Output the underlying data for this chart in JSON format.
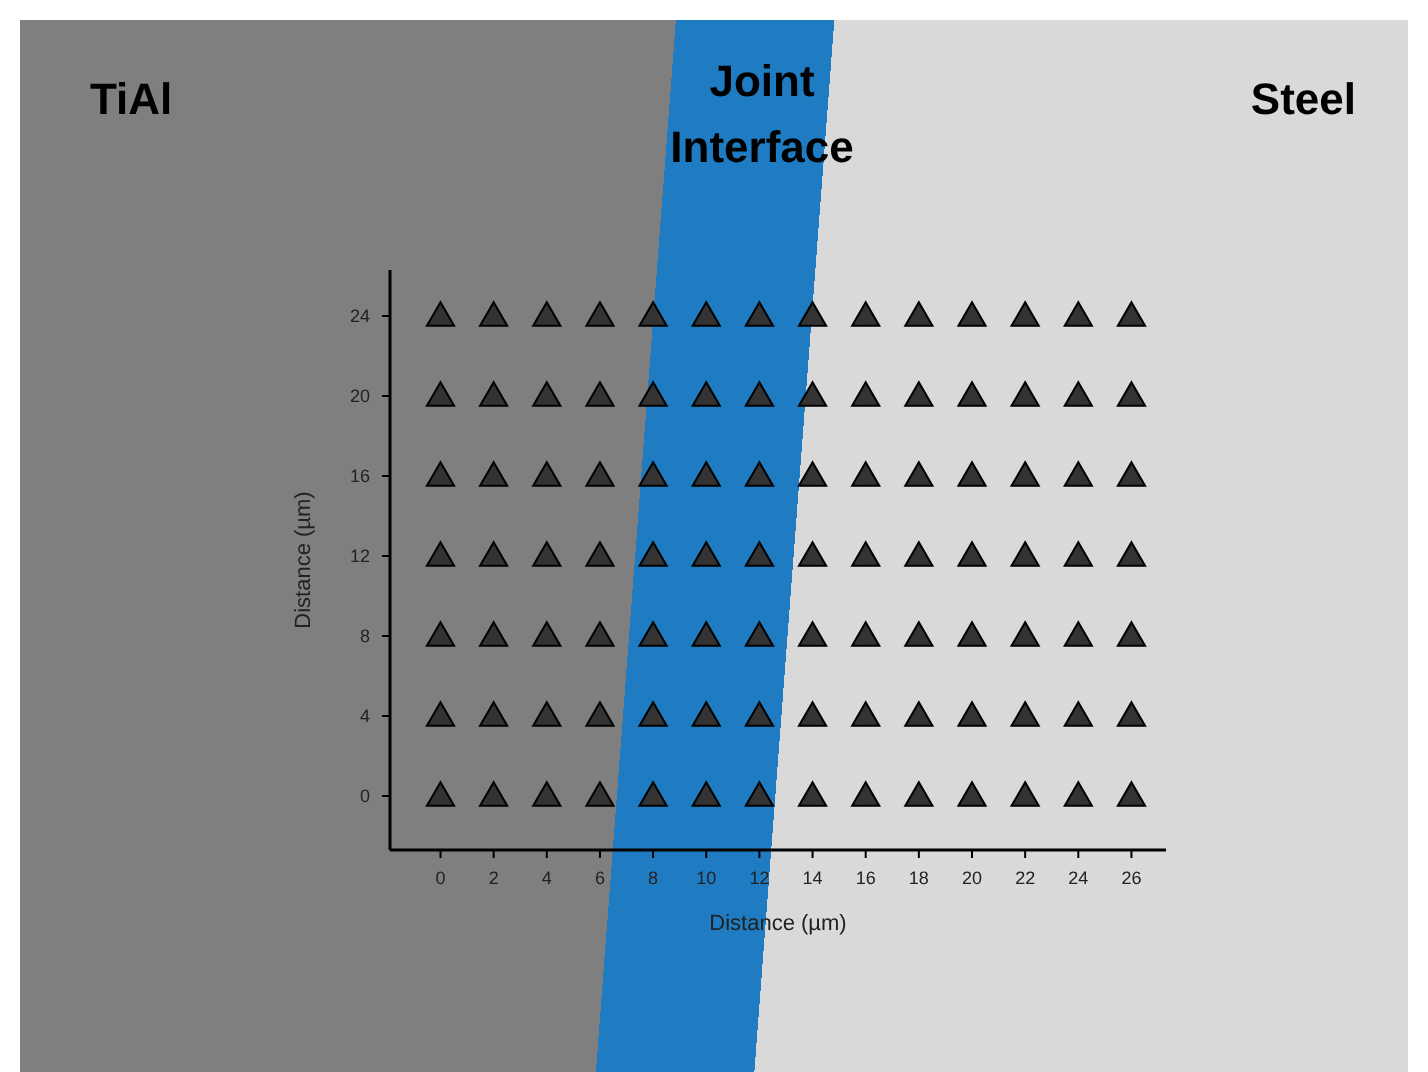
{
  "chart_data": {
    "type": "scatter",
    "xlabel": "Distance (µm)",
    "ylabel": "Distance (µm)",
    "annotations": [
      "TiAl",
      "Joint Interface",
      "Steel"
    ],
    "xlim": [
      -1.9,
      27.3
    ],
    "ylim": [
      -2.7,
      26.3
    ],
    "xticks": [
      0,
      2,
      4,
      6,
      8,
      10,
      12,
      14,
      16,
      18,
      20,
      22,
      24,
      26
    ],
    "yticks": [
      0,
      4,
      8,
      12,
      16,
      20,
      24
    ],
    "marker": "triangle",
    "series": [
      {
        "color": "#333333",
        "x": [
          0,
          2,
          4,
          6,
          8,
          10,
          12,
          14,
          16,
          18,
          20,
          22,
          24,
          26,
          0,
          2,
          4,
          6,
          8,
          10,
          12,
          14,
          16,
          18,
          20,
          22,
          24,
          26,
          0,
          2,
          4,
          6,
          8,
          10,
          12,
          14,
          16,
          18,
          20,
          22,
          24,
          26,
          0,
          2,
          4,
          6,
          8,
          10,
          12,
          14,
          16,
          18,
          20,
          22,
          24,
          26,
          0,
          2,
          4,
          6,
          8,
          10,
          12,
          14,
          16,
          18,
          20,
          22,
          24,
          26,
          0,
          2,
          4,
          6,
          8,
          10,
          12,
          14,
          16,
          18,
          20,
          22,
          24,
          26,
          0,
          2,
          4,
          6,
          8,
          10,
          12,
          14,
          16,
          18,
          20,
          22,
          24,
          26
        ],
        "values": [
          0,
          0,
          0,
          0,
          0,
          0,
          0,
          0,
          0,
          0,
          0,
          0,
          0,
          0,
          4,
          4,
          4,
          4,
          4,
          4,
          4,
          4,
          4,
          4,
          4,
          4,
          4,
          4,
          8,
          8,
          8,
          8,
          8,
          8,
          8,
          8,
          8,
          8,
          8,
          8,
          8,
          8,
          12,
          12,
          12,
          12,
          12,
          12,
          12,
          12,
          12,
          12,
          12,
          12,
          12,
          12,
          16,
          16,
          16,
          16,
          16,
          16,
          16,
          16,
          16,
          16,
          16,
          16,
          16,
          16,
          20,
          20,
          20,
          20,
          20,
          20,
          20,
          20,
          20,
          20,
          20,
          20,
          20,
          20,
          24,
          24,
          24,
          24,
          24,
          24,
          24,
          24,
          24,
          24,
          24,
          24,
          24,
          24
        ]
      }
    ]
  }
}
